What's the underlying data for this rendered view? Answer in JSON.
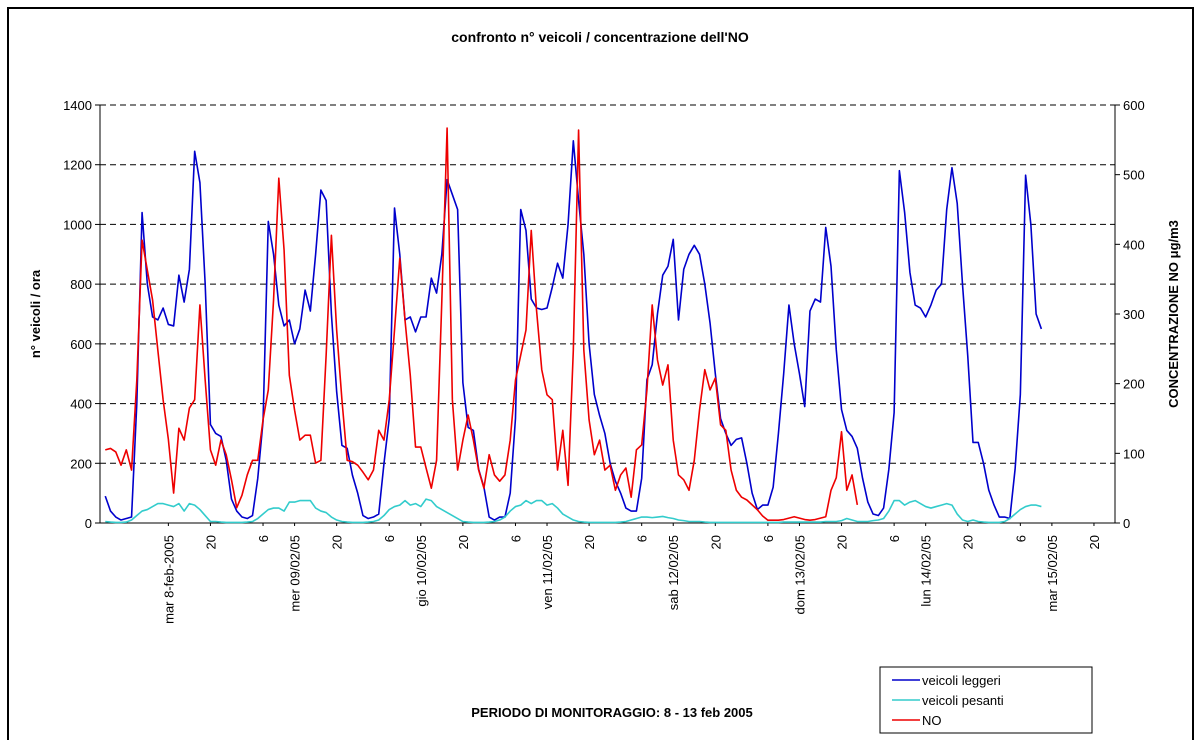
{
  "chart_data": {
    "type": "line",
    "title": "confronto n° veicoli / concentrazione dell'NO",
    "xlabel": "PERIODO DI MONITORAGGIO: 8 - 13 feb 2005",
    "ylabel": "n° veicoli / ora",
    "y2label": "CONCENTRAZIONE NO μg/m3",
    "legend": "bottom-right",
    "grid": true,
    "xlim": [
      -1,
      192
    ],
    "xticks": [
      {
        "value": 12,
        "label": "mar 8-feb-2005"
      },
      20,
      {
        "value": 30,
        "label": "6"
      },
      {
        "value": 36,
        "label": "mer 09/02/05"
      },
      {
        "value": 44,
        "label": "20"
      },
      {
        "value": 54,
        "label": "6"
      },
      {
        "value": 60,
        "label": "gio 10/02/05"
      },
      {
        "value": 68,
        "label": "20"
      },
      {
        "value": 78,
        "label": "6"
      },
      {
        "value": 84,
        "label": "ven 11/02/05"
      },
      {
        "value": 92,
        "label": "20"
      },
      {
        "value": 102,
        "label": "6"
      },
      {
        "value": 108,
        "label": "sab 12/02/05"
      },
      {
        "value": 116,
        "label": "20"
      },
      {
        "value": 126,
        "label": "6"
      },
      {
        "value": 132,
        "label": "dom 13/02/05"
      },
      {
        "value": 140,
        "label": "20"
      },
      {
        "value": 150,
        "label": "6"
      },
      {
        "value": 156,
        "label": "lun 14/02/05"
      },
      {
        "value": 164,
        "label": "20"
      },
      {
        "value": 174,
        "label": "6"
      },
      {
        "value": 180,
        "label": "mar 15/02/05"
      },
      {
        "value": 188,
        "label": "20"
      }
    ],
    "ylim": [
      0,
      1400
    ],
    "yticks": [
      0,
      200,
      400,
      600,
      800,
      1000,
      1200,
      1400
    ],
    "y2lim": [
      0,
      600
    ],
    "y2ticks": [
      0,
      100,
      200,
      300,
      400,
      500,
      600
    ],
    "x": [
      0,
      1,
      2,
      3,
      4,
      5,
      6,
      7,
      8,
      9,
      10,
      11,
      12,
      13,
      14,
      15,
      16,
      17,
      18,
      19,
      20,
      21,
      22,
      23,
      24,
      25,
      26,
      27,
      28,
      29,
      30,
      31,
      32,
      33,
      34,
      35,
      36,
      37,
      38,
      39,
      40,
      41,
      42,
      43,
      44,
      45,
      46,
      47,
      48,
      49,
      50,
      51,
      52,
      53,
      54,
      55,
      56,
      57,
      58,
      59,
      60,
      61,
      62,
      63,
      64,
      65,
      66,
      67,
      68,
      69,
      70,
      71,
      72,
      73,
      74,
      75,
      76,
      77,
      78,
      79,
      80,
      81,
      82,
      83,
      84,
      85,
      86,
      87,
      88,
      89,
      90,
      91,
      92,
      93,
      94,
      95,
      96,
      97,
      98,
      99,
      100,
      101,
      102,
      103,
      104,
      105,
      106,
      107,
      108,
      109,
      110,
      111,
      112,
      113,
      114,
      115,
      116,
      117,
      118,
      119,
      120,
      121,
      122,
      123,
      124,
      125,
      126,
      127,
      128,
      129,
      130,
      131,
      132,
      133,
      134,
      135,
      136,
      137,
      138,
      139,
      140,
      141,
      142,
      143,
      144,
      145,
      146,
      147,
      148,
      149,
      150,
      151,
      152,
      153,
      154,
      155,
      156,
      157,
      158,
      159,
      160,
      161,
      162,
      163,
      164,
      165,
      166,
      167,
      168,
      169,
      170,
      171,
      172,
      173,
      174,
      175,
      176,
      177,
      178
    ],
    "series": [
      {
        "name": "veicoli leggeri",
        "color": "#0000cc",
        "values": [
          90,
          40,
          20,
          10,
          15,
          20,
          400,
          1040,
          800,
          690,
          680,
          720,
          665,
          660,
          830,
          740,
          850,
          1245,
          1140,
          800,
          330,
          300,
          290,
          210,
          80,
          40,
          20,
          15,
          25,
          150,
          340,
          1010,
          900,
          730,
          660,
          680,
          600,
          650,
          780,
          710,
          900,
          1115,
          1080,
          700,
          440,
          260,
          250,
          160,
          100,
          25,
          15,
          20,
          30,
          200,
          350,
          1055,
          900,
          680,
          690,
          640,
          690,
          690,
          820,
          770,
          900,
          1150,
          1100,
          1050,
          470,
          320,
          310,
          180,
          120,
          20,
          10,
          20,
          20,
          100,
          350,
          1050,
          980,
          750,
          720,
          715,
          720,
          790,
          870,
          820,
          1000,
          1280,
          1080,
          900,
          600,
          430,
          360,
          300,
          200,
          140,
          100,
          50,
          40,
          40,
          150,
          480,
          530,
          700,
          830,
          860,
          950,
          680,
          850,
          900,
          930,
          900,
          800,
          670,
          500,
          350,
          300,
          260,
          280,
          285,
          200,
          100,
          45,
          60,
          60,
          120,
          300,
          500,
          730,
          600,
          500,
          390,
          710,
          750,
          740,
          990,
          860,
          580,
          380,
          310,
          290,
          250,
          150,
          70,
          30,
          25,
          50,
          180,
          370,
          1180,
          1040,
          840,
          730,
          720,
          690,
          730,
          780,
          800,
          1050,
          1190,
          1070,
          800,
          560,
          270,
          270,
          200,
          110,
          60,
          20,
          20,
          15,
          180,
          430,
          1165,
          1000,
          700,
          650
        ]
      },
      {
        "name": "veicoli pesanti",
        "color": "#33cccc",
        "values": [
          5,
          3,
          2,
          2,
          3,
          10,
          25,
          40,
          45,
          55,
          65,
          65,
          60,
          55,
          65,
          40,
          65,
          60,
          45,
          25,
          5,
          5,
          3,
          2,
          2,
          2,
          2,
          3,
          5,
          15,
          30,
          45,
          50,
          50,
          40,
          70,
          70,
          75,
          75,
          75,
          50,
          40,
          35,
          20,
          10,
          5,
          3,
          2,
          2,
          2,
          3,
          5,
          10,
          25,
          45,
          55,
          60,
          75,
          60,
          65,
          55,
          80,
          75,
          55,
          45,
          35,
          25,
          15,
          5,
          3,
          2,
          2,
          2,
          3,
          5,
          10,
          20,
          40,
          55,
          60,
          75,
          65,
          75,
          75,
          60,
          65,
          50,
          30,
          20,
          10,
          5,
          3,
          2,
          2,
          2,
          2,
          2,
          2,
          3,
          5,
          10,
          15,
          20,
          20,
          18,
          20,
          22,
          18,
          15,
          10,
          8,
          5,
          5,
          5,
          3,
          2,
          2,
          2,
          2,
          2,
          2,
          2,
          2,
          2,
          2,
          2,
          2,
          2,
          2,
          3,
          3,
          3,
          3,
          3,
          3,
          3,
          3,
          5,
          5,
          5,
          8,
          15,
          10,
          5,
          5,
          5,
          8,
          10,
          15,
          40,
          75,
          75,
          60,
          70,
          75,
          65,
          55,
          50,
          55,
          60,
          65,
          60,
          30,
          10,
          5,
          10,
          5,
          3,
          2,
          2,
          2,
          5,
          15,
          30,
          45,
          55,
          60,
          60,
          55
        ]
      },
      {
        "name": "NO",
        "color": "#ee0000",
        "axis": "y2",
        "values": [
          105,
          107,
          102,
          83,
          105,
          76,
          205,
          406,
          363,
          320,
          248,
          177,
          120,
          43,
          136,
          119,
          165,
          177,
          313,
          205,
          105,
          83,
          119,
          98,
          62,
          22,
          40,
          69,
          90,
          90,
          148,
          191,
          320,
          495,
          392,
          212,
          162,
          119,
          126,
          126,
          86,
          90,
          241,
          413,
          277,
          177,
          90,
          88,
          83,
          73,
          62,
          76,
          133,
          119,
          177,
          277,
          380,
          291,
          212,
          109,
          109,
          79,
          50,
          90,
          320,
          567,
          177,
          76,
          119,
          155,
          119,
          76,
          50,
          98,
          69,
          60,
          69,
          119,
          205,
          241,
          277,
          420,
          306,
          220,
          184,
          177,
          76,
          133,
          54,
          248,
          564,
          248,
          148,
          98,
          119,
          76,
          83,
          47,
          69,
          79,
          37,
          105,
          112,
          191,
          313,
          234,
          198,
          227,
          119,
          69,
          62,
          47,
          90,
          162,
          220,
          191,
          208,
          141,
          133,
          76,
          47,
          37,
          33,
          26,
          19,
          10,
          4,
          4,
          4,
          5,
          7,
          9,
          7,
          5,
          4,
          5,
          7,
          9,
          47,
          65,
          131,
          47,
          69,
          26,
          null,
          null,
          null,
          null,
          null,
          null,
          null,
          null,
          null,
          null,
          null,
          null,
          null,
          null,
          null,
          null,
          null,
          null,
          null,
          null,
          null,
          null,
          null,
          null,
          null,
          null,
          null,
          null,
          null,
          null,
          null,
          null,
          null,
          null,
          null
        ]
      }
    ]
  }
}
